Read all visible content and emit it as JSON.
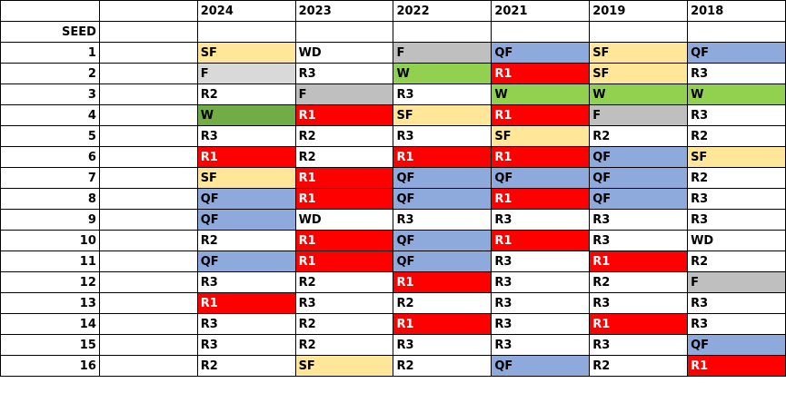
{
  "header": {
    "years": [
      "2024",
      "2023",
      "2022",
      "2021",
      "2019",
      "2018"
    ]
  },
  "seed_label": "SEED",
  "result_colors": {
    "SF": "#FFE699",
    "F": "#BFBFBF",
    "F_2024": "#D9D9D9",
    "W": "#92D050",
    "W_2024": "#70AD47",
    "R1": "#FF0000",
    "QF": "#8EA9DB"
  },
  "rows": [
    {
      "seed": "1",
      "results": [
        "SF",
        "WD",
        "F",
        "QF",
        "SF",
        "QF"
      ]
    },
    {
      "seed": "2",
      "results": [
        "F",
        "R3",
        "W",
        "R1",
        "SF",
        "R3"
      ]
    },
    {
      "seed": "3",
      "results": [
        "R2",
        "F",
        "R3",
        "W",
        "W",
        "W"
      ]
    },
    {
      "seed": "4",
      "results": [
        "W",
        "R1",
        "SF",
        "R1",
        "F",
        "R3"
      ]
    },
    {
      "seed": "5",
      "results": [
        "R3",
        "R2",
        "R3",
        "SF",
        "R2",
        "R2"
      ]
    },
    {
      "seed": "6",
      "results": [
        "R1",
        "R2",
        "R1",
        "R1",
        "QF",
        "SF"
      ]
    },
    {
      "seed": "7",
      "results": [
        "SF",
        "R1",
        "QF",
        "QF",
        "QF",
        "R2"
      ]
    },
    {
      "seed": "8",
      "results": [
        "QF",
        "R1",
        "QF",
        "R1",
        "QF",
        "R3"
      ]
    },
    {
      "seed": "9",
      "results": [
        "QF",
        "WD",
        "R3",
        "R3",
        "R3",
        "R3"
      ]
    },
    {
      "seed": "10",
      "results": [
        "R2",
        "R1",
        "QF",
        "R1",
        "R3",
        "WD"
      ]
    },
    {
      "seed": "11",
      "results": [
        "QF",
        "R1",
        "QF",
        "R3",
        "R1",
        "R2"
      ]
    },
    {
      "seed": "12",
      "results": [
        "R3",
        "R2",
        "R1",
        "R3",
        "R2",
        "F"
      ]
    },
    {
      "seed": "13",
      "results": [
        "R1",
        "R3",
        "R2",
        "R3",
        "R3",
        "R3"
      ]
    },
    {
      "seed": "14",
      "results": [
        "R3",
        "R2",
        "R1",
        "R3",
        "R1",
        "R3"
      ]
    },
    {
      "seed": "15",
      "results": [
        "R3",
        "R2",
        "R3",
        "R3",
        "R3",
        "QF"
      ]
    },
    {
      "seed": "16",
      "results": [
        "R2",
        "SF",
        "R2",
        "QF",
        "R2",
        "R1"
      ]
    }
  ]
}
